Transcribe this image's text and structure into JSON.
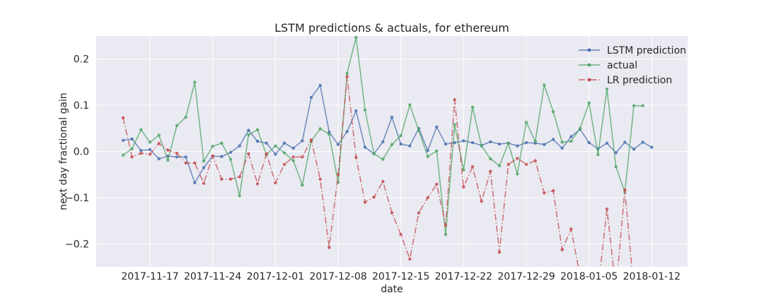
{
  "chart_data": {
    "type": "line",
    "title": "LSTM predictions & actuals, for ethereum",
    "xlabel": "date",
    "ylabel": "next day fractional gain",
    "x_start": "2017-11-14",
    "xlim": [
      "2017-11-11",
      "2018-01-16"
    ],
    "ylim": [
      -0.25,
      0.25
    ],
    "yticks": [
      -0.2,
      -0.1,
      0.0,
      0.1,
      0.2
    ],
    "ytick_labels": [
      "−0.2",
      "−0.1",
      "0.0",
      "0.1",
      "0.2"
    ],
    "xticks": [
      "2017-11-17",
      "2017-11-24",
      "2017-12-01",
      "2017-12-08",
      "2017-12-15",
      "2017-12-22",
      "2017-12-29",
      "2018-01-05",
      "2018-01-12"
    ],
    "grid": true,
    "legend_position": "top-right",
    "series": [
      {
        "name": "LSTM prediction",
        "color": "#4c72b0",
        "style": "solid",
        "values": [
          0.024,
          0.027,
          0.002,
          0.004,
          -0.016,
          -0.01,
          -0.012,
          -0.012,
          -0.068,
          -0.035,
          -0.01,
          -0.011,
          -0.002,
          0.012,
          0.046,
          0.022,
          0.018,
          -0.006,
          0.018,
          0.007,
          0.023,
          0.117,
          0.143,
          0.042,
          0.015,
          0.043,
          0.088,
          0.009,
          -0.005,
          0.021,
          0.074,
          0.016,
          0.012,
          0.05,
          0.002,
          0.053,
          0.016,
          0.019,
          0.023,
          0.019,
          0.013,
          0.021,
          0.016,
          0.018,
          0.012,
          0.019,
          0.018,
          0.015,
          0.026,
          0.007,
          0.032,
          0.048,
          0.019,
          0.006,
          0.018,
          -0.003,
          0.02,
          0.005,
          0.02,
          0.009
        ]
      },
      {
        "name": "actual",
        "color": "#55a868",
        "style": "solid",
        "values": [
          -0.008,
          0.006,
          0.047,
          0.02,
          0.035,
          -0.019,
          0.056,
          0.074,
          0.15,
          -0.021,
          0.011,
          0.018,
          -0.017,
          -0.096,
          0.036,
          0.047,
          -0.007,
          0.012,
          -0.003,
          -0.02,
          -0.073,
          0.023,
          0.049,
          0.037,
          -0.067,
          0.169,
          0.247,
          0.09,
          -0.005,
          -0.017,
          0.015,
          0.034,
          0.101,
          0.045,
          -0.011,
          0.001,
          -0.18,
          0.058,
          -0.04,
          0.096,
          0.012,
          -0.016,
          -0.031,
          0.018,
          -0.049,
          0.063,
          0.022,
          0.144,
          0.086,
          0.02,
          0.022,
          0.05,
          0.105,
          -0.007,
          0.135,
          -0.033,
          -0.088,
          0.099,
          0.099
        ]
      },
      {
        "name": "LR prediction",
        "color": "#c44e52",
        "style": "dashdot",
        "values": [
          0.073,
          -0.012,
          -0.004,
          -0.006,
          0.017,
          0.003,
          -0.004,
          -0.025,
          -0.025,
          -0.069,
          -0.01,
          -0.06,
          -0.06,
          -0.055,
          -0.005,
          -0.07,
          -0.005,
          -0.068,
          -0.028,
          -0.012,
          -0.012,
          0.025,
          -0.06,
          -0.208,
          -0.05,
          0.162,
          -0.013,
          -0.11,
          -0.099,
          -0.065,
          -0.133,
          -0.18,
          -0.233,
          -0.133,
          -0.1,
          -0.071,
          -0.16,
          0.112,
          -0.077,
          -0.033,
          -0.108,
          -0.043,
          -0.218,
          -0.028,
          -0.015,
          -0.028,
          -0.02,
          -0.09,
          -0.085,
          -0.213,
          -0.168,
          -0.27,
          -0.3,
          -0.3,
          -0.125,
          -0.3,
          -0.083,
          -0.3
        ]
      }
    ]
  }
}
